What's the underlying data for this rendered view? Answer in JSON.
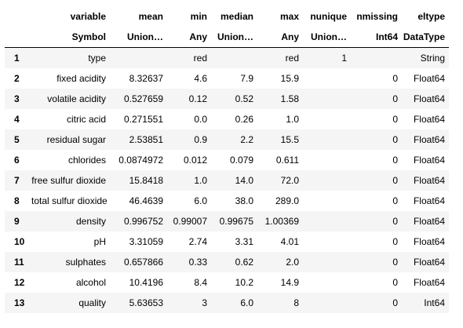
{
  "table": {
    "columns": [
      "variable",
      "mean",
      "min",
      "median",
      "max",
      "nunique",
      "nmissing",
      "eltype"
    ],
    "types": [
      "Symbol",
      "Union…",
      "Any",
      "Union…",
      "Any",
      "Union…",
      "Int64",
      "DataType"
    ],
    "rows": [
      {
        "n": "1",
        "cells": [
          "type",
          "",
          "red",
          "",
          "red",
          "1",
          "",
          "String"
        ]
      },
      {
        "n": "2",
        "cells": [
          "fixed acidity",
          "8.32637",
          "4.6",
          "7.9",
          "15.9",
          "",
          "0",
          "Float64"
        ]
      },
      {
        "n": "3",
        "cells": [
          "volatile acidity",
          "0.527659",
          "0.12",
          "0.52",
          "1.58",
          "",
          "0",
          "Float64"
        ]
      },
      {
        "n": "4",
        "cells": [
          "citric acid",
          "0.271551",
          "0.0",
          "0.26",
          "1.0",
          "",
          "0",
          "Float64"
        ]
      },
      {
        "n": "5",
        "cells": [
          "residual sugar",
          "2.53851",
          "0.9",
          "2.2",
          "15.5",
          "",
          "0",
          "Float64"
        ]
      },
      {
        "n": "6",
        "cells": [
          "chlorides",
          "0.0874972",
          "0.012",
          "0.079",
          "0.611",
          "",
          "0",
          "Float64"
        ]
      },
      {
        "n": "7",
        "cells": [
          "free sulfur dioxide",
          "15.8418",
          "1.0",
          "14.0",
          "72.0",
          "",
          "0",
          "Float64"
        ]
      },
      {
        "n": "8",
        "cells": [
          "total sulfur dioxide",
          "46.4639",
          "6.0",
          "38.0",
          "289.0",
          "",
          "0",
          "Float64"
        ]
      },
      {
        "n": "9",
        "cells": [
          "density",
          "0.996752",
          "0.99007",
          "0.99675",
          "1.00369",
          "",
          "0",
          "Float64"
        ]
      },
      {
        "n": "10",
        "cells": [
          "pH",
          "3.31059",
          "2.74",
          "3.31",
          "4.01",
          "",
          "0",
          "Float64"
        ]
      },
      {
        "n": "11",
        "cells": [
          "sulphates",
          "0.657866",
          "0.33",
          "0.62",
          "2.0",
          "",
          "0",
          "Float64"
        ]
      },
      {
        "n": "12",
        "cells": [
          "alcohol",
          "10.4196",
          "8.4",
          "10.2",
          "14.9",
          "",
          "0",
          "Float64"
        ]
      },
      {
        "n": "13",
        "cells": [
          "quality",
          "5.63653",
          "3",
          "6.0",
          "8",
          "",
          "0",
          "Int64"
        ]
      }
    ]
  }
}
